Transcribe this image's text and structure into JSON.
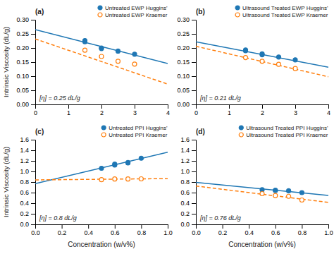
{
  "chart_data": [
    {
      "type": "scatter",
      "title": "(a)",
      "ylabel": "Intrinsic Viscosity (dL/g)",
      "annotations": [
        "[η] = 0.25 dL/g"
      ],
      "xlim": [
        0,
        4
      ],
      "ylim": [
        0,
        0.3
      ],
      "xticks": [
        0,
        1,
        2,
        3,
        4
      ],
      "yticks": [
        {
          "value": 0,
          "label": "0.00"
        },
        0.05,
        {
          "value": 0.1,
          "label": "0.10"
        },
        0.15,
        {
          "value": 0.2,
          "label": "0.20"
        },
        0.25,
        {
          "value": 0.3,
          "label": "0.30"
        }
      ],
      "grid": false,
      "legend": "top-right",
      "series": [
        {
          "name": "Untreated EWP Huggins'",
          "type": "scatter",
          "marker": "circle",
          "x": [
            1.5,
            1.5,
            2.0,
            2.0,
            2.5,
            3.0
          ],
          "values": [
            0.226,
            0.222,
            0.2,
            0.198,
            0.189,
            0.178
          ],
          "errors": [
            0.005,
            0.005,
            0.004,
            0.004,
            0.004,
            0.004
          ]
        },
        {
          "name": "Untreated EWP Kraemer",
          "type": "scatter",
          "marker": "open-circle",
          "x": [
            1.5,
            2.0,
            2.5,
            3.0
          ],
          "values": [
            0.192,
            0.17,
            0.153,
            0.143
          ],
          "errors": [
            0.003,
            0.003,
            0.003,
            0.003
          ]
        },
        {
          "type": "line",
          "line_style": "solid",
          "x": [
            0,
            4
          ],
          "values": [
            0.265,
            0.145
          ]
        },
        {
          "type": "line",
          "line_style": "dashed",
          "x": [
            0,
            4
          ],
          "values": [
            0.232,
            0.072
          ]
        }
      ]
    },
    {
      "type": "scatter",
      "title": "(b)",
      "annotations": [
        "[η] = 0.21 dL/g"
      ],
      "xlim": [
        0,
        4
      ],
      "ylim": [
        0,
        0.3
      ],
      "xticks": [
        0,
        1,
        2,
        3,
        4
      ],
      "yticks": [
        {
          "value": 0,
          "label": "0.00"
        },
        0.05,
        {
          "value": 0.1,
          "label": "0.10"
        },
        0.15,
        {
          "value": 0.2,
          "label": "0.20"
        },
        0.25,
        {
          "value": 0.3,
          "label": "0.30"
        }
      ],
      "grid": false,
      "legend": "top-right",
      "series": [
        {
          "name": "Ultrasound Treated EWP Huggins'",
          "type": "scatter",
          "marker": "circle",
          "x": [
            1.5,
            1.5,
            2.0,
            2.0,
            2.5,
            3.0
          ],
          "values": [
            0.193,
            0.19,
            0.179,
            0.176,
            0.168,
            0.158
          ],
          "errors": [
            0.005,
            0.005,
            0.004,
            0.004,
            0.004,
            0.004
          ]
        },
        {
          "name": "Ultrasound Treated EWP Kraemer",
          "type": "scatter",
          "marker": "open-circle",
          "x": [
            1.5,
            2.0,
            2.5,
            3.0
          ],
          "values": [
            0.166,
            0.153,
            0.142,
            0.127
          ],
          "errors": [
            0.003,
            0.003,
            0.003,
            0.003
          ]
        },
        {
          "type": "line",
          "line_style": "solid",
          "x": [
            0,
            4
          ],
          "values": [
            0.222,
            0.132
          ]
        },
        {
          "type": "line",
          "line_style": "dashed",
          "x": [
            0,
            4
          ],
          "values": [
            0.206,
            0.098
          ]
        }
      ]
    },
    {
      "type": "scatter",
      "title": "(c)",
      "xlabel": "Concentration (w/v%)",
      "ylabel": "Intrinsic Viscosity (dL/g)",
      "annotations": [
        "[η] = 0.8 dL/g"
      ],
      "xlim": [
        0.0,
        1.0
      ],
      "ylim": [
        0.0,
        1.6
      ],
      "xticks": [
        {
          "value": 0,
          "label": "0.0"
        },
        0.2,
        0.4,
        0.6,
        0.8,
        {
          "value": 1,
          "label": "1.0"
        }
      ],
      "yticks": [
        {
          "value": 0,
          "label": "0.0"
        },
        0.2,
        0.4,
        0.6,
        0.8,
        {
          "value": 1,
          "label": "1.0"
        },
        1.2,
        1.4,
        1.6
      ],
      "grid": false,
      "legend": "top-right",
      "series": [
        {
          "name": "Untreated PPI Huggins'",
          "type": "scatter",
          "marker": "circle",
          "x": [
            0.5,
            0.6,
            0.6,
            0.7,
            0.7,
            0.8
          ],
          "values": [
            1.06,
            1.12,
            1.14,
            1.17,
            1.16,
            1.25
          ],
          "errors": [
            0.02,
            0.02,
            0.02,
            0.02,
            0.02,
            0.02
          ]
        },
        {
          "name": "Untreated PPI Kraemer",
          "type": "scatter",
          "marker": "open-circle",
          "x": [
            0.5,
            0.6,
            0.7,
            0.8
          ],
          "values": [
            0.845,
            0.858,
            0.858,
            0.86
          ],
          "errors": [
            0.01,
            0.01,
            0.01,
            0.01
          ]
        },
        {
          "type": "line",
          "line_style": "solid",
          "x": [
            0.0,
            1.0
          ],
          "values": [
            0.77,
            1.365
          ]
        },
        {
          "type": "line",
          "line_style": "dashed",
          "x": [
            0.0,
            1.0
          ],
          "values": [
            0.84,
            0.865
          ]
        }
      ]
    },
    {
      "type": "scatter",
      "title": "(d)",
      "xlabel": "Concentration (w/v%)",
      "annotations": [
        "[η] = 0.76 dL/g"
      ],
      "xlim": [
        0.0,
        1.0
      ],
      "ylim": [
        0.0,
        1.6
      ],
      "xticks": [
        {
          "value": 0,
          "label": "0.0"
        },
        0.2,
        0.4,
        0.6,
        0.8,
        {
          "value": 1,
          "label": "1.0"
        }
      ],
      "yticks": [
        {
          "value": 0,
          "label": "0.0"
        },
        0.2,
        0.4,
        0.6,
        0.8,
        {
          "value": 1,
          "label": "1.0"
        },
        1.2,
        1.4,
        1.6
      ],
      "grid": false,
      "legend": "top-right",
      "series": [
        {
          "name": "Ultrasound Treated PPI Huggins'",
          "type": "scatter",
          "marker": "circle",
          "x": [
            0.5,
            0.6,
            0.6,
            0.7,
            0.8
          ],
          "values": [
            0.655,
            0.645,
            0.64,
            0.635,
            0.6
          ],
          "errors": [
            0.015,
            0.015,
            0.015,
            0.015,
            0.015
          ]
        },
        {
          "name": "Ultrasound Treated PPI Kraemer",
          "type": "scatter",
          "marker": "open-circle",
          "x": [
            0.5,
            0.6,
            0.7,
            0.8
          ],
          "values": [
            0.58,
            0.545,
            0.53,
            0.46
          ],
          "errors": [
            0.01,
            0.01,
            0.01,
            0.01
          ]
        },
        {
          "type": "line",
          "line_style": "solid",
          "x": [
            0.0,
            1.0
          ],
          "values": [
            0.795,
            0.545
          ]
        },
        {
          "type": "line",
          "line_style": "dashed",
          "x": [
            0.0,
            1.0
          ],
          "values": [
            0.725,
            0.415
          ]
        }
      ]
    }
  ]
}
